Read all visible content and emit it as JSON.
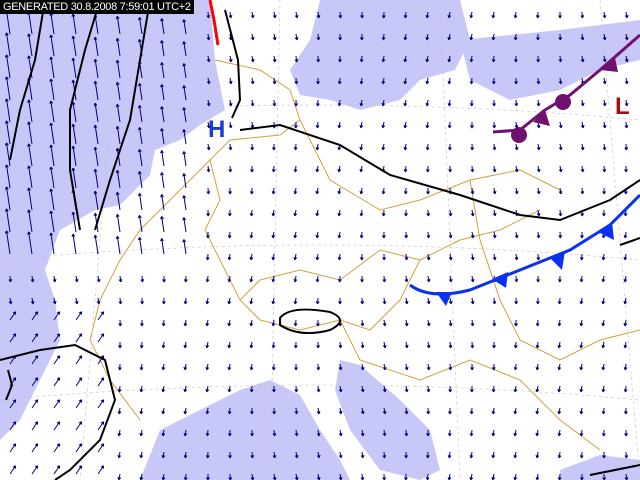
{
  "header": {
    "generated_label": "GENERATED 30.8.2008 7:59:01 UTC+2"
  },
  "pressure_centers": [
    {
      "label": "H",
      "color": "#1a3ccc"
    },
    {
      "label": "L",
      "color": "#a01010"
    }
  ],
  "colors": {
    "sea": "#c8c8f8",
    "land": "#ffffff",
    "borders": "#d4a040",
    "wind_arrows": "#000080",
    "cold_front": "#0a30f0",
    "occluded_front": "#701070",
    "isobar": "#000000",
    "warm_front_fragment": "#ff0000"
  },
  "map_type": "weather map with wind arrows, isobars and fronts"
}
